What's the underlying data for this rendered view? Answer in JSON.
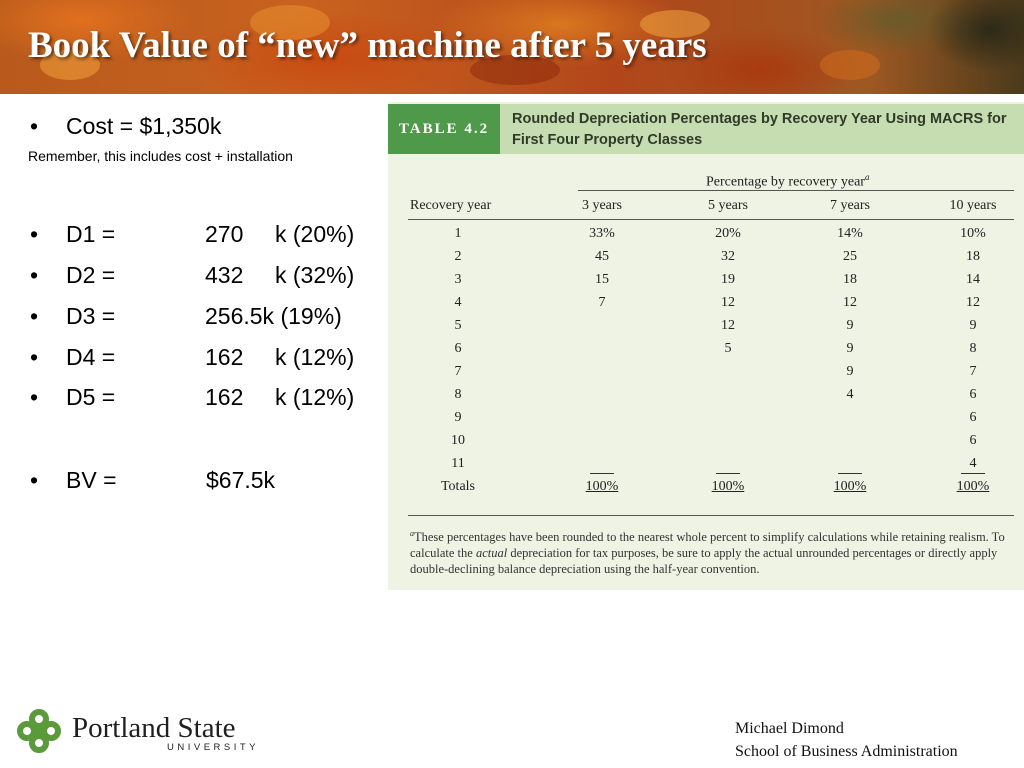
{
  "slide": {
    "title": "Book Value of “new” machine after 5 years"
  },
  "bullets": {
    "cost": "Cost = $1,350k",
    "note": "Remember, this includes cost + installation",
    "items": [
      {
        "label": "D1 =",
        "value": "270",
        "unit": "k (20%)"
      },
      {
        "label": "D2 =",
        "value": "432",
        "unit": "k (32%)"
      },
      {
        "label": "D3 =",
        "value": "256.5k (19%)",
        "unit": ""
      },
      {
        "label": "D4 =",
        "value": "162",
        "unit": "k (12%)"
      },
      {
        "label": "D5 =",
        "value": "162",
        "unit": "k (12%)"
      }
    ],
    "bv_label": "BV =",
    "bv_value": "$67.5k"
  },
  "table": {
    "label": "TABLE 4.2",
    "title": "Rounded Depreciation Percentages by Recovery Year Using MACRS for First Four Property Classes",
    "group_header": "Percentage by recovery year",
    "group_header_sup": "a",
    "columns": [
      "Recovery year",
      "3 years",
      "5 years",
      "7 years",
      "10 years"
    ],
    "rows": [
      [
        "1",
        "33%",
        "20%",
        "14%",
        "10%"
      ],
      [
        "2",
        "45",
        "32",
        "25",
        "18"
      ],
      [
        "3",
        "15",
        "19",
        "18",
        "14"
      ],
      [
        "4",
        "7",
        "12",
        "12",
        "12"
      ],
      [
        "5",
        "",
        "12",
        "9",
        "9"
      ],
      [
        "6",
        "",
        "5",
        "9",
        "8"
      ],
      [
        "7",
        "",
        "",
        "9",
        "7"
      ],
      [
        "8",
        "",
        "",
        "4",
        "6"
      ],
      [
        "9",
        "",
        "",
        "",
        "6"
      ],
      [
        "10",
        "",
        "",
        "",
        "6"
      ],
      [
        "11",
        "",
        "",
        "",
        "4"
      ]
    ],
    "totals": [
      "Totals",
      "100%",
      "100%",
      "100%",
      "100%"
    ],
    "footnote_sup": "a",
    "footnote_pre": "These percentages have been rounded to the nearest whole percent to simplify calculations while retaining realism. To calculate the ",
    "footnote_em": "actual",
    "footnote_post": " depreciation for tax purposes, be sure to apply the actual unrounded percentages or directly apply double-declining balance depreciation using the half-year convention."
  },
  "footer": {
    "university_name": "Portland State",
    "university_word": "UNIVERSITY",
    "author": "Michael Dimond",
    "school": "School of Business Administration"
  },
  "colors": {
    "table_label_bg": "#4f9a4a",
    "table_header_bg": "#c5ddb0",
    "table_bg": "#eef3e4",
    "logo_green": "#5a9a3a"
  }
}
